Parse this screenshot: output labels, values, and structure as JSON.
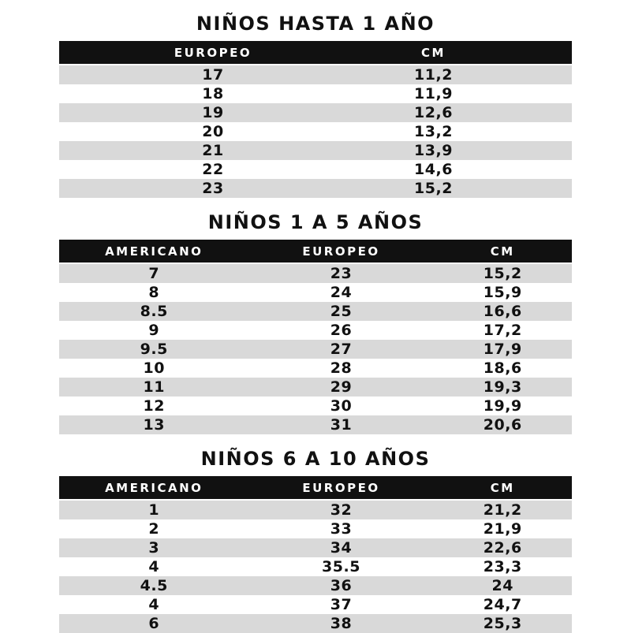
{
  "colors": {
    "page_bg": "#ffffff",
    "header_bg": "#111111",
    "header_text": "#ffffff",
    "row_alt_bg": "#d9d9d9",
    "text": "#111111"
  },
  "tables": [
    {
      "title": "NIÑOS HASTA 1 AÑO",
      "columns": [
        "EUROPEO",
        "CM"
      ],
      "rows": [
        [
          "17",
          "11,2"
        ],
        [
          "18",
          "11,9"
        ],
        [
          "19",
          "12,6"
        ],
        [
          "20",
          "13,2"
        ],
        [
          "21",
          "13,9"
        ],
        [
          "22",
          "14,6"
        ],
        [
          "23",
          "15,2"
        ]
      ]
    },
    {
      "title": "NIÑOS 1 A 5 AÑOS",
      "columns": [
        "AMERICANO",
        "EUROPEO",
        "CM"
      ],
      "rows": [
        [
          "7",
          "23",
          "15,2"
        ],
        [
          "8",
          "24",
          "15,9"
        ],
        [
          "8.5",
          "25",
          "16,6"
        ],
        [
          "9",
          "26",
          "17,2"
        ],
        [
          "9.5",
          "27",
          "17,9"
        ],
        [
          "10",
          "28",
          "18,6"
        ],
        [
          "11",
          "29",
          "19,3"
        ],
        [
          "12",
          "30",
          "19,9"
        ],
        [
          "13",
          "31",
          "20,6"
        ]
      ]
    },
    {
      "title": "NIÑOS 6 A 10 AÑOS",
      "columns": [
        "AMERICANO",
        "EUROPEO",
        "CM"
      ],
      "rows": [
        [
          "1",
          "32",
          "21,2"
        ],
        [
          "2",
          "33",
          "21,9"
        ],
        [
          "3",
          "34",
          "22,6"
        ],
        [
          "4",
          "35.5",
          "23,3"
        ],
        [
          "4.5",
          "36",
          "24"
        ],
        [
          "4",
          "37",
          "24,7"
        ],
        [
          "6",
          "38",
          "25,3"
        ]
      ]
    }
  ]
}
